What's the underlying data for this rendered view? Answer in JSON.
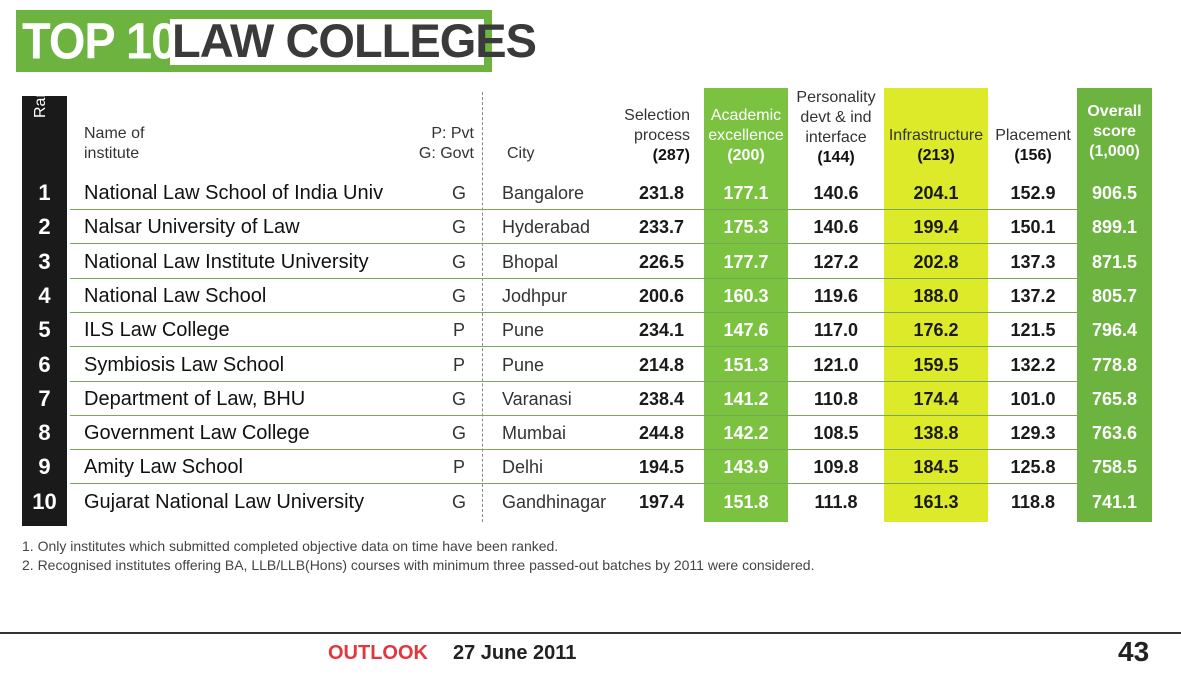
{
  "title": {
    "top": "TOP 10",
    "subject": "LAW COLLEGES"
  },
  "headers": {
    "rank": "Rank",
    "name": [
      "Name of",
      "institute"
    ],
    "type": [
      "P: Pvt",
      "G: Govt"
    ],
    "city": "City",
    "selection": [
      "Selection",
      "process",
      "(287)"
    ],
    "academic": [
      "Academic",
      "excellence",
      "(200)"
    ],
    "personality": [
      "Personality",
      "devt & ind",
      "interface",
      "(144)"
    ],
    "infrastructure": [
      "Infrastructure",
      "(213)"
    ],
    "placement": [
      "Placement",
      "(156)"
    ],
    "overall": [
      "Overall",
      "score",
      "(1,000)"
    ]
  },
  "rows": [
    {
      "rank": "1",
      "name": "National Law School of India Univ",
      "type": "G",
      "city": "Bangalore",
      "selection": "231.8",
      "academic": "177.1",
      "personality": "140.6",
      "infrastructure": "204.1",
      "placement": "152.9",
      "overall": "906.5"
    },
    {
      "rank": "2",
      "name": "Nalsar University of Law",
      "type": "G",
      "city": "Hyderabad",
      "selection": "233.7",
      "academic": "175.3",
      "personality": "140.6",
      "infrastructure": "199.4",
      "placement": "150.1",
      "overall": "899.1"
    },
    {
      "rank": "3",
      "name": "National Law Institute University",
      "type": "G",
      "city": "Bhopal",
      "selection": "226.5",
      "academic": "177.7",
      "personality": "127.2",
      "infrastructure": "202.8",
      "placement": "137.3",
      "overall": "871.5"
    },
    {
      "rank": "4",
      "name": "National Law School",
      "type": "G",
      "city": "Jodhpur",
      "selection": "200.6",
      "academic": "160.3",
      "personality": "119.6",
      "infrastructure": "188.0",
      "placement": "137.2",
      "overall": "805.7"
    },
    {
      "rank": "5",
      "name": "ILS Law College",
      "type": "P",
      "city": "Pune",
      "selection": "234.1",
      "academic": "147.6",
      "personality": "117.0",
      "infrastructure": "176.2",
      "placement": "121.5",
      "overall": "796.4"
    },
    {
      "rank": "6",
      "name": "Symbiosis Law School",
      "type": "P",
      "city": "Pune",
      "selection": "214.8",
      "academic": "151.3",
      "personality": "121.0",
      "infrastructure": "159.5",
      "placement": "132.2",
      "overall": "778.8"
    },
    {
      "rank": "7",
      "name": "Department of Law, BHU",
      "type": "G",
      "city": "Varanasi",
      "selection": "238.4",
      "academic": "141.2",
      "personality": "110.8",
      "infrastructure": "174.4",
      "placement": "101.0",
      "overall": "765.8"
    },
    {
      "rank": "8",
      "name": "Government Law College",
      "type": "G",
      "city": "Mumbai",
      "selection": "244.8",
      "academic": "142.2",
      "personality": "108.5",
      "infrastructure": "138.8",
      "placement": "129.3",
      "overall": "763.6"
    },
    {
      "rank": "9",
      "name": "Amity Law School",
      "type": "P",
      "city": "Delhi",
      "selection": "194.5",
      "academic": "143.9",
      "personality": "109.8",
      "infrastructure": "184.5",
      "placement": "125.8",
      "overall": "758.5"
    },
    {
      "rank": "10",
      "name": "Gujarat National Law University",
      "type": "G",
      "city": "Gandhinagar",
      "selection": "197.4",
      "academic": "151.8",
      "personality": "111.8",
      "infrastructure": "161.3",
      "placement": "118.8",
      "overall": "741.1"
    }
  ],
  "notes": [
    "1. Only institutes which submitted completed objective data on time have been ranked.",
    "2. Recognised institutes offering BA, LLB/LLB(Hons) courses with minimum three passed-out batches by 2011 were considered."
  ],
  "footer": {
    "brand": "OUTLOOK",
    "date": "27 June 2011",
    "page": "43"
  },
  "colors": {
    "green": "#6cb33f",
    "lime": "#ddea2a",
    "brand_red": "#e2373f"
  }
}
